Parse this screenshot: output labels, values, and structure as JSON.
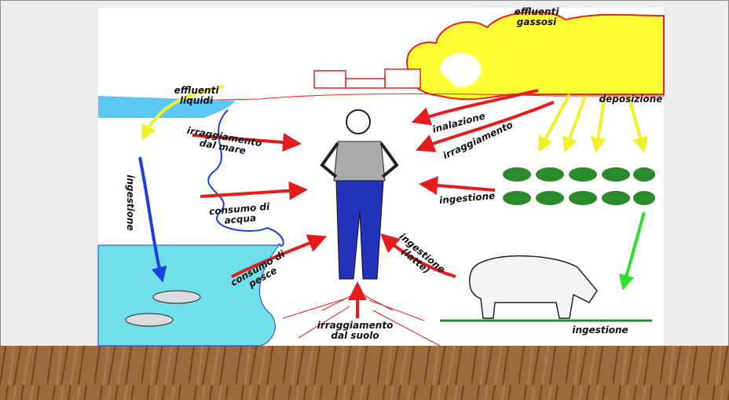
{
  "labels": {
    "gassosi": {
      "lines": [
        "effluenti",
        "gassosi"
      ]
    },
    "deposizione": {
      "lines": [
        "deposizione"
      ]
    },
    "liquidi": {
      "lines": [
        "effluenti",
        "liquidi"
      ]
    },
    "inalazione": {
      "lines": [
        "inalazione"
      ]
    },
    "irraggiamento": {
      "lines": [
        "irraggiamento"
      ]
    },
    "mare": {
      "lines": [
        "irraggiamento",
        "dal mare"
      ]
    },
    "ingestione_sea": {
      "lines": [
        "ingestione"
      ]
    },
    "acqua": {
      "lines": [
        "consumo di",
        "acqua"
      ]
    },
    "pesce": {
      "lines": [
        "consumo di",
        "pesce"
      ]
    },
    "ingestione_plants": {
      "lines": [
        "ingestione"
      ]
    },
    "latte": {
      "lines": [
        "ingestione",
        "(latte)"
      ]
    },
    "suolo": {
      "lines": [
        "irraggiamento",
        "dal suolo"
      ]
    },
    "ingestione_cow": {
      "lines": [
        "ingestione"
      ]
    }
  }
}
